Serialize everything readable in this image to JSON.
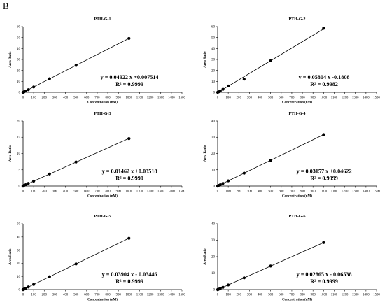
{
  "figure": {
    "panel_label": "B"
  },
  "chart_data": [
    {
      "type": "scatter",
      "title": "PTH-G-1",
      "xlabel": "Concentration (nM)",
      "ylabel": "Area Ratio",
      "xlim": [
        0,
        1500
      ],
      "ylim": [
        0,
        60
      ],
      "yticks": [
        0,
        10,
        20,
        30,
        40,
        50,
        60
      ],
      "x": [
        0,
        5,
        10,
        25,
        50,
        100,
        250,
        500,
        1000
      ],
      "y": [
        0.0,
        0.25,
        0.5,
        1.2,
        2.4,
        4.9,
        12.4,
        24.6,
        49.2
      ],
      "fit": {
        "slope": 0.04922,
        "intercept": 0.007514
      },
      "equation": "y = 0.04922 x +0.007514",
      "r2": "R² = 0.9999"
    },
    {
      "type": "scatter",
      "title": "PTH-G-2",
      "xlabel": "Concentration (nM)",
      "ylabel": "Area Ratio",
      "xlim": [
        0,
        1500
      ],
      "ylim": [
        0,
        60
      ],
      "yticks": [
        0,
        10,
        20,
        30,
        40,
        50,
        60
      ],
      "x": [
        0,
        5,
        10,
        25,
        50,
        100,
        250,
        500,
        1000
      ],
      "y": [
        0.0,
        0.3,
        0.5,
        1.3,
        2.8,
        5.8,
        12.0,
        28.8,
        58.5
      ],
      "fit": {
        "slope": 0.05804,
        "intercept": -0.1808
      },
      "equation": "y = 0.05804 x -0.1808",
      "r2": "R² = 0.9982"
    },
    {
      "type": "scatter",
      "title": "PTH-G-3",
      "xlabel": "Concentration (nM)",
      "ylabel": "Area Ratio",
      "xlim": [
        0,
        1500
      ],
      "ylim": [
        0,
        20
      ],
      "yticks": [
        0,
        5,
        10,
        15,
        20
      ],
      "x": [
        0,
        5,
        10,
        25,
        50,
        100,
        250,
        500,
        1000
      ],
      "y": [
        0.0,
        0.1,
        0.2,
        0.4,
        0.8,
        1.5,
        3.7,
        7.4,
        14.6
      ],
      "fit": {
        "slope": 0.01462,
        "intercept": 0.03518
      },
      "equation": "y = 0.01462 x +0.03518",
      "r2": "R² = 0.9990"
    },
    {
      "type": "scatter",
      "title": "PTH-G-4",
      "xlabel": "Concentration (nM)",
      "ylabel": "Area Ratio",
      "xlim": [
        0,
        1500
      ],
      "ylim": [
        0,
        40
      ],
      "yticks": [
        0,
        10,
        20,
        30,
        40
      ],
      "x": [
        0,
        5,
        10,
        25,
        50,
        100,
        250,
        500,
        1000
      ],
      "y": [
        0.0,
        0.2,
        0.4,
        0.8,
        1.6,
        3.2,
        7.9,
        15.8,
        31.6
      ],
      "fit": {
        "slope": 0.03157,
        "intercept": 0.04622
      },
      "equation": "y = 0.03157 x +0.04622",
      "r2": "R² = 0.9999"
    },
    {
      "type": "scatter",
      "title": "PTH-G-5",
      "xlabel": "Concentration (nM)",
      "ylabel": "Area Ratio",
      "xlim": [
        0,
        1500
      ],
      "ylim": [
        0,
        50
      ],
      "yticks": [
        0,
        10,
        20,
        30,
        40,
        50
      ],
      "x": [
        0,
        5,
        10,
        25,
        50,
        100,
        250,
        500,
        1000
      ],
      "y": [
        0.0,
        0.2,
        0.4,
        1.0,
        2.0,
        3.9,
        9.7,
        19.5,
        39.0
      ],
      "fit": {
        "slope": 0.03904,
        "intercept": -0.03446
      },
      "equation": "y = 0.03904 x - 0.03446",
      "r2": "R² = 0.9999"
    },
    {
      "type": "scatter",
      "title": "PTH-G-6",
      "xlabel": "Concentration (nM)",
      "ylabel": "Area Ratio",
      "xlim": [
        0,
        1500
      ],
      "ylim": [
        0,
        40
      ],
      "yticks": [
        0,
        10,
        20,
        30,
        40
      ],
      "x": [
        0,
        5,
        10,
        25,
        50,
        100,
        250,
        500,
        1000
      ],
      "y": [
        0.0,
        0.1,
        0.3,
        0.7,
        1.4,
        2.8,
        7.1,
        14.3,
        28.6
      ],
      "fit": {
        "slope": 0.02865,
        "intercept": -0.06538
      },
      "equation": "y = 0.02865 x - 0.06538",
      "r2": "R² = 0.9999"
    }
  ]
}
